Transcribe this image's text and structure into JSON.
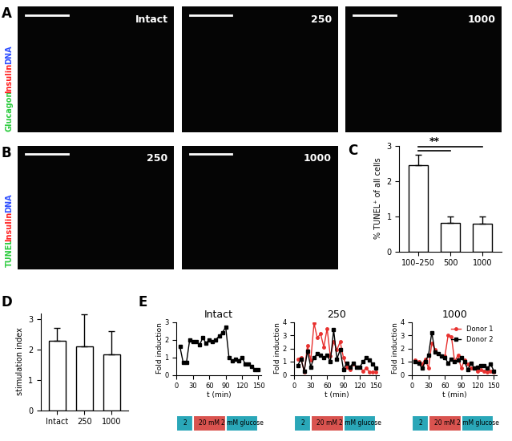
{
  "image_panels": [
    {
      "panel": "A",
      "stains": [
        {
          "text": "Glucagon",
          "color": "#2ecc40"
        },
        {
          "text": "Insulin",
          "color": "#ff2020"
        },
        {
          "text": "DNA",
          "color": "#3050ff"
        }
      ],
      "images": [
        "Intact",
        "250",
        "1000"
      ]
    },
    {
      "panel": "B",
      "stains": [
        {
          "text": "TUNEL",
          "color": "#2ecc40"
        },
        {
          "text": "Insulin",
          "color": "#ff2020"
        },
        {
          "text": "DNA",
          "color": "#3050ff"
        }
      ],
      "images": [
        "250",
        "1000"
      ]
    }
  ],
  "chart_data": [
    {
      "type": "bar",
      "panel": "C",
      "categories": [
        "100–250",
        "500",
        "1000"
      ],
      "values": [
        2.45,
        0.8,
        0.78
      ],
      "errors": [
        0.3,
        0.2,
        0.22
      ],
      "color": "#ffffff",
      "y_label": "% TUNEL⁺ of all cells",
      "ylim": [
        0,
        3
      ],
      "yticks": [
        0,
        1,
        2,
        3
      ],
      "significance": {
        "label": "**",
        "pairs": [
          [
            "100–250",
            "500"
          ],
          [
            "100–250",
            "1000"
          ]
        ]
      }
    },
    {
      "type": "bar",
      "panel": "D",
      "categories": [
        "Intact",
        "250",
        "1000"
      ],
      "values": [
        2.3,
        2.1,
        1.85
      ],
      "errors": [
        0.4,
        1.05,
        0.75
      ],
      "color": "#ffffff",
      "y_label": "stimulation index",
      "ylim": [
        0,
        3.2
      ],
      "yticks": [
        0,
        1,
        2,
        3
      ]
    },
    {
      "type": "line",
      "panel": "E",
      "title": "Intact",
      "x_label": "t (min)",
      "y_label": "Fold induction",
      "x": [
        6,
        12,
        18,
        24,
        30,
        36,
        42,
        48,
        54,
        60,
        66,
        72,
        78,
        84,
        90,
        96,
        102,
        108,
        114,
        120,
        126,
        132,
        138,
        144,
        150
      ],
      "series": [
        {
          "color": "#000000",
          "marker": "s",
          "values": [
            1.6,
            0.7,
            0.7,
            2.0,
            1.9,
            1.9,
            1.7,
            2.1,
            1.8,
            2.0,
            1.9,
            2.0,
            2.2,
            2.4,
            2.7,
            1.0,
            0.8,
            0.9,
            0.8,
            1.0,
            0.6,
            0.6,
            0.5,
            0.3,
            0.3
          ]
        }
      ],
      "xlim": [
        0,
        155
      ],
      "xticks": [
        0,
        30,
        60,
        90,
        120,
        150
      ],
      "ylim": [
        0,
        3
      ],
      "yticks": [
        0,
        1,
        2,
        3
      ],
      "protocol": [
        {
          "label": "2",
          "start": 0,
          "end": 30,
          "color": "#2aa7b8"
        },
        {
          "label": "20 mM",
          "start": 30,
          "end": 90,
          "color": "#d9534f"
        },
        {
          "label": "2 mM glucose",
          "start": 90,
          "end": 150,
          "color": "#2aa7b8"
        }
      ]
    },
    {
      "type": "line",
      "title": "250",
      "x_label": "t (min)",
      "y_label": "Fold induction",
      "x": [
        6,
        12,
        18,
        24,
        30,
        36,
        42,
        48,
        54,
        60,
        66,
        72,
        78,
        84,
        90,
        96,
        102,
        108,
        114,
        120,
        126,
        132,
        138,
        144,
        150
      ],
      "series": [
        {
          "color": "#e8312f",
          "marker": "o",
          "values": [
            1.2,
            1.3,
            0.2,
            2.2,
            1.1,
            3.9,
            2.8,
            3.1,
            2.1,
            3.5,
            1.4,
            2.5,
            1.9,
            2.5,
            1.3,
            0.6,
            0.4,
            0.8,
            0.6,
            0.6,
            0.3,
            0.5,
            0.2,
            0.2,
            0.2
          ]
        },
        {
          "color": "#000000",
          "marker": "s",
          "values": [
            0.7,
            1.2,
            0.3,
            1.8,
            0.6,
            1.3,
            1.6,
            1.5,
            1.3,
            1.5,
            1.0,
            3.4,
            1.2,
            1.9,
            0.4,
            0.9,
            0.6,
            0.9,
            0.6,
            0.6,
            1.0,
            1.3,
            1.1,
            0.8,
            0.5
          ]
        }
      ],
      "xlim": [
        0,
        155
      ],
      "xticks": [
        0,
        30,
        60,
        90,
        120,
        150
      ],
      "ylim": [
        0,
        4
      ],
      "yticks": [
        0,
        1,
        2,
        3,
        4
      ],
      "protocol": [
        {
          "label": "2",
          "start": 0,
          "end": 30,
          "color": "#2aa7b8"
        },
        {
          "label": "20 mM",
          "start": 30,
          "end": 90,
          "color": "#d9534f"
        },
        {
          "label": "2 mM glucose",
          "start": 90,
          "end": 150,
          "color": "#2aa7b8"
        }
      ]
    },
    {
      "type": "line",
      "title": "1000",
      "x_label": "t (min)",
      "y_label": "Fold induction",
      "legend": "upper right",
      "x": [
        6,
        12,
        18,
        24,
        30,
        36,
        42,
        48,
        54,
        60,
        66,
        72,
        78,
        84,
        90,
        96,
        102,
        108,
        114,
        120,
        126,
        132,
        138,
        144,
        150
      ],
      "series": [
        {
          "name": "Donor 1",
          "color": "#e8312f",
          "marker": "o",
          "values": [
            1.1,
            1.0,
            0.8,
            1.2,
            0.5,
            2.4,
            1.9,
            1.6,
            1.4,
            1.4,
            3.0,
            2.9,
            1.0,
            1.5,
            0.5,
            1.1,
            0.8,
            0.5,
            0.5,
            0.3,
            0.4,
            0.3,
            0.2,
            0.3,
            0.2
          ]
        },
        {
          "name": "Donor 2",
          "color": "#000000",
          "marker": "s",
          "values": [
            1.0,
            0.9,
            0.5,
            1.0,
            1.5,
            3.2,
            1.7,
            1.6,
            1.4,
            1.3,
            0.9,
            1.2,
            1.0,
            1.1,
            1.3,
            1.0,
            0.4,
            0.9,
            0.5,
            0.6,
            0.7,
            0.7,
            0.5,
            0.8,
            0.3
          ]
        }
      ],
      "xlim": [
        0,
        155
      ],
      "xticks": [
        0,
        30,
        60,
        90,
        120,
        150
      ],
      "ylim": [
        0,
        4
      ],
      "yticks": [
        0,
        1,
        2,
        3,
        4
      ],
      "protocol": [
        {
          "label": "2",
          "start": 0,
          "end": 30,
          "color": "#2aa7b8"
        },
        {
          "label": "20 mM",
          "start": 30,
          "end": 90,
          "color": "#d9534f"
        },
        {
          "label": "2 mM glucose",
          "start": 90,
          "end": 150,
          "color": "#2aa7b8"
        }
      ]
    }
  ]
}
